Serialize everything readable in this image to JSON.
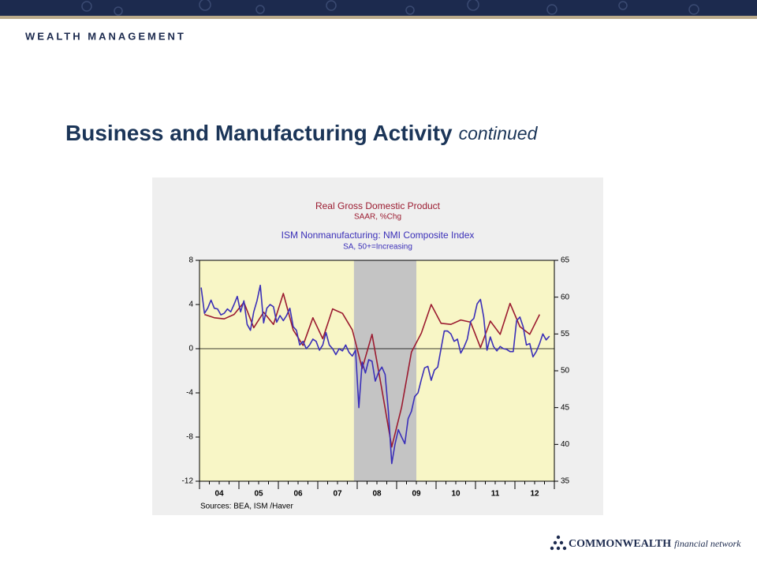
{
  "header": {
    "brand": "WEALTH MANAGEMENT"
  },
  "slide": {
    "title": "Business and Manufacturing Activity",
    "title_suffix": "continued"
  },
  "chart_data": {
    "type": "line",
    "series": [
      {
        "name": "Real Gross Domestic Product",
        "subtitle": "SAAR, %Chg",
        "color": "#9b1b30",
        "axis": "y",
        "x": [
          2004.125,
          2004.375,
          2004.625,
          2004.875,
          2005.125,
          2005.375,
          2005.625,
          2005.875,
          2006.125,
          2006.375,
          2006.625,
          2006.875,
          2007.125,
          2007.375,
          2007.625,
          2007.875,
          2008.125,
          2008.375,
          2008.625,
          2008.875,
          2009.125,
          2009.375,
          2009.625,
          2009.875,
          2010.125,
          2010.375,
          2010.625,
          2010.875,
          2011.125,
          2011.375,
          2011.625,
          2011.875,
          2012.125,
          2012.375,
          2012.625
        ],
        "values": [
          3.1,
          2.8,
          2.7,
          3.1,
          4.2,
          1.9,
          3.3,
          2.2,
          5.0,
          1.7,
          0.3,
          2.8,
          0.9,
          3.6,
          3.2,
          1.7,
          -1.8,
          1.3,
          -3.7,
          -8.9,
          -5.3,
          -0.3,
          1.4,
          4.0,
          2.3,
          2.2,
          2.6,
          2.4,
          0.1,
          2.5,
          1.3,
          4.1,
          2.0,
          1.3,
          3.1
        ]
      },
      {
        "name": "ISM Nonmanufacturing: NMI Composite Index",
        "subtitle": "SA, 50+=Increasing",
        "color": "#3a2fb8",
        "axis": "y2",
        "x": [
          2004.042,
          2004.125,
          2004.208,
          2004.292,
          2004.375,
          2004.458,
          2004.542,
          2004.625,
          2004.708,
          2004.792,
          2004.875,
          2004.958,
          2005.042,
          2005.125,
          2005.208,
          2005.292,
          2005.375,
          2005.458,
          2005.542,
          2005.625,
          2005.708,
          2005.792,
          2005.875,
          2005.958,
          2006.042,
          2006.125,
          2006.208,
          2006.292,
          2006.375,
          2006.458,
          2006.542,
          2006.625,
          2006.708,
          2006.792,
          2006.875,
          2006.958,
          2007.042,
          2007.125,
          2007.208,
          2007.292,
          2007.375,
          2007.458,
          2007.542,
          2007.625,
          2007.708,
          2007.792,
          2007.875,
          2007.958,
          2008.042,
          2008.125,
          2008.208,
          2008.292,
          2008.375,
          2008.458,
          2008.542,
          2008.625,
          2008.708,
          2008.792,
          2008.875,
          2008.958,
          2009.042,
          2009.125,
          2009.208,
          2009.292,
          2009.375,
          2009.458,
          2009.542,
          2009.625,
          2009.708,
          2009.792,
          2009.875,
          2009.958,
          2010.042,
          2010.125,
          2010.208,
          2010.292,
          2010.375,
          2010.458,
          2010.542,
          2010.625,
          2010.708,
          2010.792,
          2010.875,
          2010.958,
          2011.042,
          2011.125,
          2011.208,
          2011.292,
          2011.375,
          2011.458,
          2011.542,
          2011.625,
          2011.708,
          2011.792,
          2011.875,
          2011.958,
          2012.042,
          2012.125,
          2012.208,
          2012.292,
          2012.375,
          2012.458,
          2012.542,
          2012.625,
          2012.708,
          2012.792,
          2012.875
        ],
        "values": [
          61.3,
          57.8,
          58.5,
          59.6,
          58.5,
          58.4,
          57.6,
          57.8,
          58.4,
          58.0,
          59.0,
          60.1,
          58.0,
          59.5,
          56.3,
          55.5,
          58.0,
          59.5,
          61.6,
          56.5,
          58.5,
          59.0,
          58.7,
          56.6,
          57.5,
          56.8,
          57.5,
          58.5,
          56.0,
          55.5,
          53.5,
          54.0,
          53.0,
          53.5,
          54.3,
          54.0,
          52.8,
          53.5,
          55.2,
          53.5,
          53.0,
          52.2,
          53.0,
          52.7,
          53.5,
          52.5,
          52.0,
          52.8,
          45.0,
          51.2,
          49.7,
          51.5,
          51.3,
          48.6,
          49.8,
          50.5,
          49.5,
          44.4,
          37.4,
          40.0,
          42.0,
          41.0,
          40.1,
          43.5,
          44.5,
          46.5,
          47.0,
          48.8,
          50.4,
          50.6,
          48.7,
          50.1,
          50.5,
          53.0,
          55.4,
          55.4,
          55.0,
          54.0,
          54.3,
          52.4,
          53.2,
          54.3,
          56.7,
          57.1,
          59.1,
          59.7,
          57.3,
          52.8,
          54.6,
          53.3,
          52.7,
          53.3,
          53.0,
          52.9,
          52.6,
          52.6,
          56.8,
          57.3,
          56.0,
          53.5,
          53.7,
          51.9,
          52.6,
          53.7,
          55.0,
          54.2,
          54.7
        ]
      }
    ],
    "xlim": [
      2004,
      2013
    ],
    "xticks": [
      {
        "value": 2004.5,
        "label": "04"
      },
      {
        "value": 2005.5,
        "label": "05"
      },
      {
        "value": 2006.5,
        "label": "06"
      },
      {
        "value": 2007.5,
        "label": "07"
      },
      {
        "value": 2008.5,
        "label": "08"
      },
      {
        "value": 2009.5,
        "label": "09"
      },
      {
        "value": 2010.5,
        "label": "10"
      },
      {
        "value": 2011.5,
        "label": "11"
      },
      {
        "value": 2012.5,
        "label": "12"
      }
    ],
    "ylim": [
      -12,
      8
    ],
    "yticks": [
      8,
      4,
      0,
      -4,
      -8,
      -12
    ],
    "y2lim": [
      35,
      65
    ],
    "y2ticks": [
      65,
      60,
      55,
      50,
      45,
      40,
      35
    ],
    "shade": {
      "x": [
        2007.917,
        2009.5
      ],
      "color": "#c4c4c4"
    },
    "hline": 0,
    "plot_color": "#f8f6c6",
    "source": "Sources: BEA, ISM /Haver"
  },
  "footer": {
    "logo": "COMMONWEALTH",
    "logo_suffix": "financial network"
  }
}
